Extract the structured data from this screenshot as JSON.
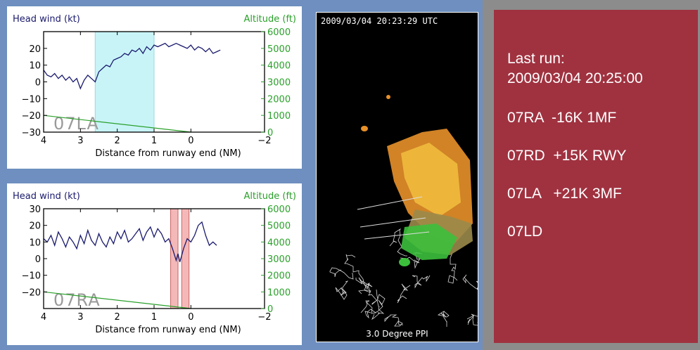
{
  "charts": [
    {
      "id": "top",
      "type": "line",
      "left_axis_label": "Head wind (kt)",
      "right_axis_label": "Altitude (ft)",
      "xlabel": "Distance from runway end (NM)",
      "runway_label": "07LA",
      "xlim": [
        4,
        -2
      ],
      "ylim_left": [
        -30,
        30
      ],
      "ylim_right": [
        0,
        6000
      ],
      "x_ticks": [
        "4",
        "3",
        "2",
        "1",
        "0",
        "−2"
      ],
      "x_tick_values": [
        4,
        3,
        2,
        1,
        0,
        -2
      ],
      "y_left_ticks": [
        "20",
        "10",
        "0",
        "−10",
        "−20",
        "−30"
      ],
      "y_left_tick_values": [
        20,
        10,
        0,
        -10,
        -20,
        -30
      ],
      "y_right_ticks": [
        "6000",
        "5000",
        "4000",
        "3000",
        "2000",
        "1000",
        "0"
      ],
      "y_right_tick_values": [
        6000,
        5000,
        4000,
        3000,
        2000,
        1000,
        0
      ],
      "shaded_regions": [
        {
          "x_from": 2.6,
          "x_to": 1.0,
          "color": "#c8f4f8"
        }
      ],
      "series": [
        {
          "axis": "left",
          "color": "#1a1a6e",
          "x": [
            4.0,
            3.9,
            3.8,
            3.7,
            3.6,
            3.5,
            3.4,
            3.3,
            3.2,
            3.1,
            3.0,
            2.9,
            2.8,
            2.7,
            2.6,
            2.5,
            2.4,
            2.3,
            2.2,
            2.1,
            2.0,
            1.9,
            1.8,
            1.7,
            1.6,
            1.5,
            1.4,
            1.3,
            1.2,
            1.1,
            1.0,
            0.9,
            0.8,
            0.7,
            0.6,
            0.5,
            0.4,
            0.3,
            0.2,
            0.1,
            0.0,
            -0.1,
            -0.2,
            -0.3,
            -0.4,
            -0.5,
            -0.6,
            -0.7,
            -0.8
          ],
          "y": [
            7,
            4,
            3,
            5,
            2,
            4,
            1,
            3,
            0,
            2,
            -4,
            1,
            4,
            2,
            0,
            6,
            8,
            10,
            9,
            13,
            14,
            15,
            17,
            16,
            19,
            18,
            20,
            17,
            21,
            19,
            22,
            21,
            22,
            23,
            21,
            22,
            23,
            22,
            21,
            20,
            22,
            19,
            21,
            20,
            18,
            20,
            17,
            18,
            19
          ]
        },
        {
          "axis": "right",
          "color": "#2aa02a",
          "x": [
            4.0,
            0.0
          ],
          "y": [
            1000,
            0
          ]
        }
      ]
    },
    {
      "id": "bottom",
      "type": "line",
      "left_axis_label": "Head wind (kt)",
      "right_axis_label": "Altitude (ft)",
      "xlabel": "Distance from runway end (NM)",
      "runway_label": "07RA",
      "xlim": [
        4,
        -2
      ],
      "ylim_left": [
        -30,
        30
      ],
      "ylim_right": [
        0,
        6000
      ],
      "x_ticks": [
        "4",
        "3",
        "2",
        "1",
        "0",
        "−2"
      ],
      "x_tick_values": [
        4,
        3,
        2,
        1,
        0,
        -2
      ],
      "y_left_ticks": [
        "30",
        "20",
        "10",
        "0",
        "−10",
        "−20"
      ],
      "y_left_tick_values": [
        30,
        20,
        10,
        0,
        -10,
        -20
      ],
      "y_right_ticks": [
        "6000",
        "5000",
        "4000",
        "3000",
        "2000",
        "1000",
        "0"
      ],
      "y_right_tick_values": [
        6000,
        5000,
        4000,
        3000,
        2000,
        1000,
        0
      ],
      "shaded_regions": [
        {
          "x_from": 0.55,
          "x_to": 0.35,
          "color": "#f4b8b8"
        },
        {
          "x_from": 0.25,
          "x_to": 0.05,
          "color": "#f4b8b8"
        }
      ],
      "series": [
        {
          "axis": "left",
          "color": "#1a1a6e",
          "x": [
            4.0,
            3.9,
            3.8,
            3.7,
            3.6,
            3.5,
            3.4,
            3.3,
            3.2,
            3.1,
            3.0,
            2.9,
            2.8,
            2.7,
            2.6,
            2.5,
            2.4,
            2.3,
            2.2,
            2.1,
            2.0,
            1.9,
            1.8,
            1.7,
            1.6,
            1.5,
            1.4,
            1.3,
            1.2,
            1.1,
            1.0,
            0.9,
            0.8,
            0.7,
            0.6,
            0.5,
            0.4,
            0.35,
            0.3,
            0.25,
            0.2,
            0.1,
            0.0,
            -0.1,
            -0.2,
            -0.3,
            -0.4,
            -0.5,
            -0.6,
            -0.7
          ],
          "y": [
            12,
            10,
            14,
            8,
            16,
            12,
            7,
            13,
            10,
            6,
            14,
            9,
            17,
            11,
            8,
            15,
            10,
            7,
            13,
            9,
            16,
            12,
            17,
            10,
            12,
            15,
            18,
            11,
            16,
            19,
            13,
            18,
            15,
            10,
            12,
            6,
            -1,
            3,
            -2,
            2,
            6,
            12,
            10,
            14,
            20,
            22,
            14,
            8,
            10,
            8
          ]
        },
        {
          "axis": "right",
          "color": "#2aa02a",
          "x": [
            4.0,
            0.0
          ],
          "y": [
            1000,
            0
          ]
        }
      ]
    }
  ],
  "radar": {
    "timestamp": "2009/03/04   20:23:29 UTC",
    "caption": "3.0 Degree PPI"
  },
  "status": {
    "title_line1": "Last run:",
    "title_line2": "2009/03/04 20:25:00",
    "runs": [
      "07RA  -16K 1MF",
      "07RD  +15K RWY",
      "07LA   +21K 3MF",
      "07LD"
    ]
  },
  "colors": {
    "background": "#6e8fbf",
    "status_panel": "#a03240",
    "headwind_line": "#1a1a6e",
    "altitude_line": "#2aa02a"
  }
}
